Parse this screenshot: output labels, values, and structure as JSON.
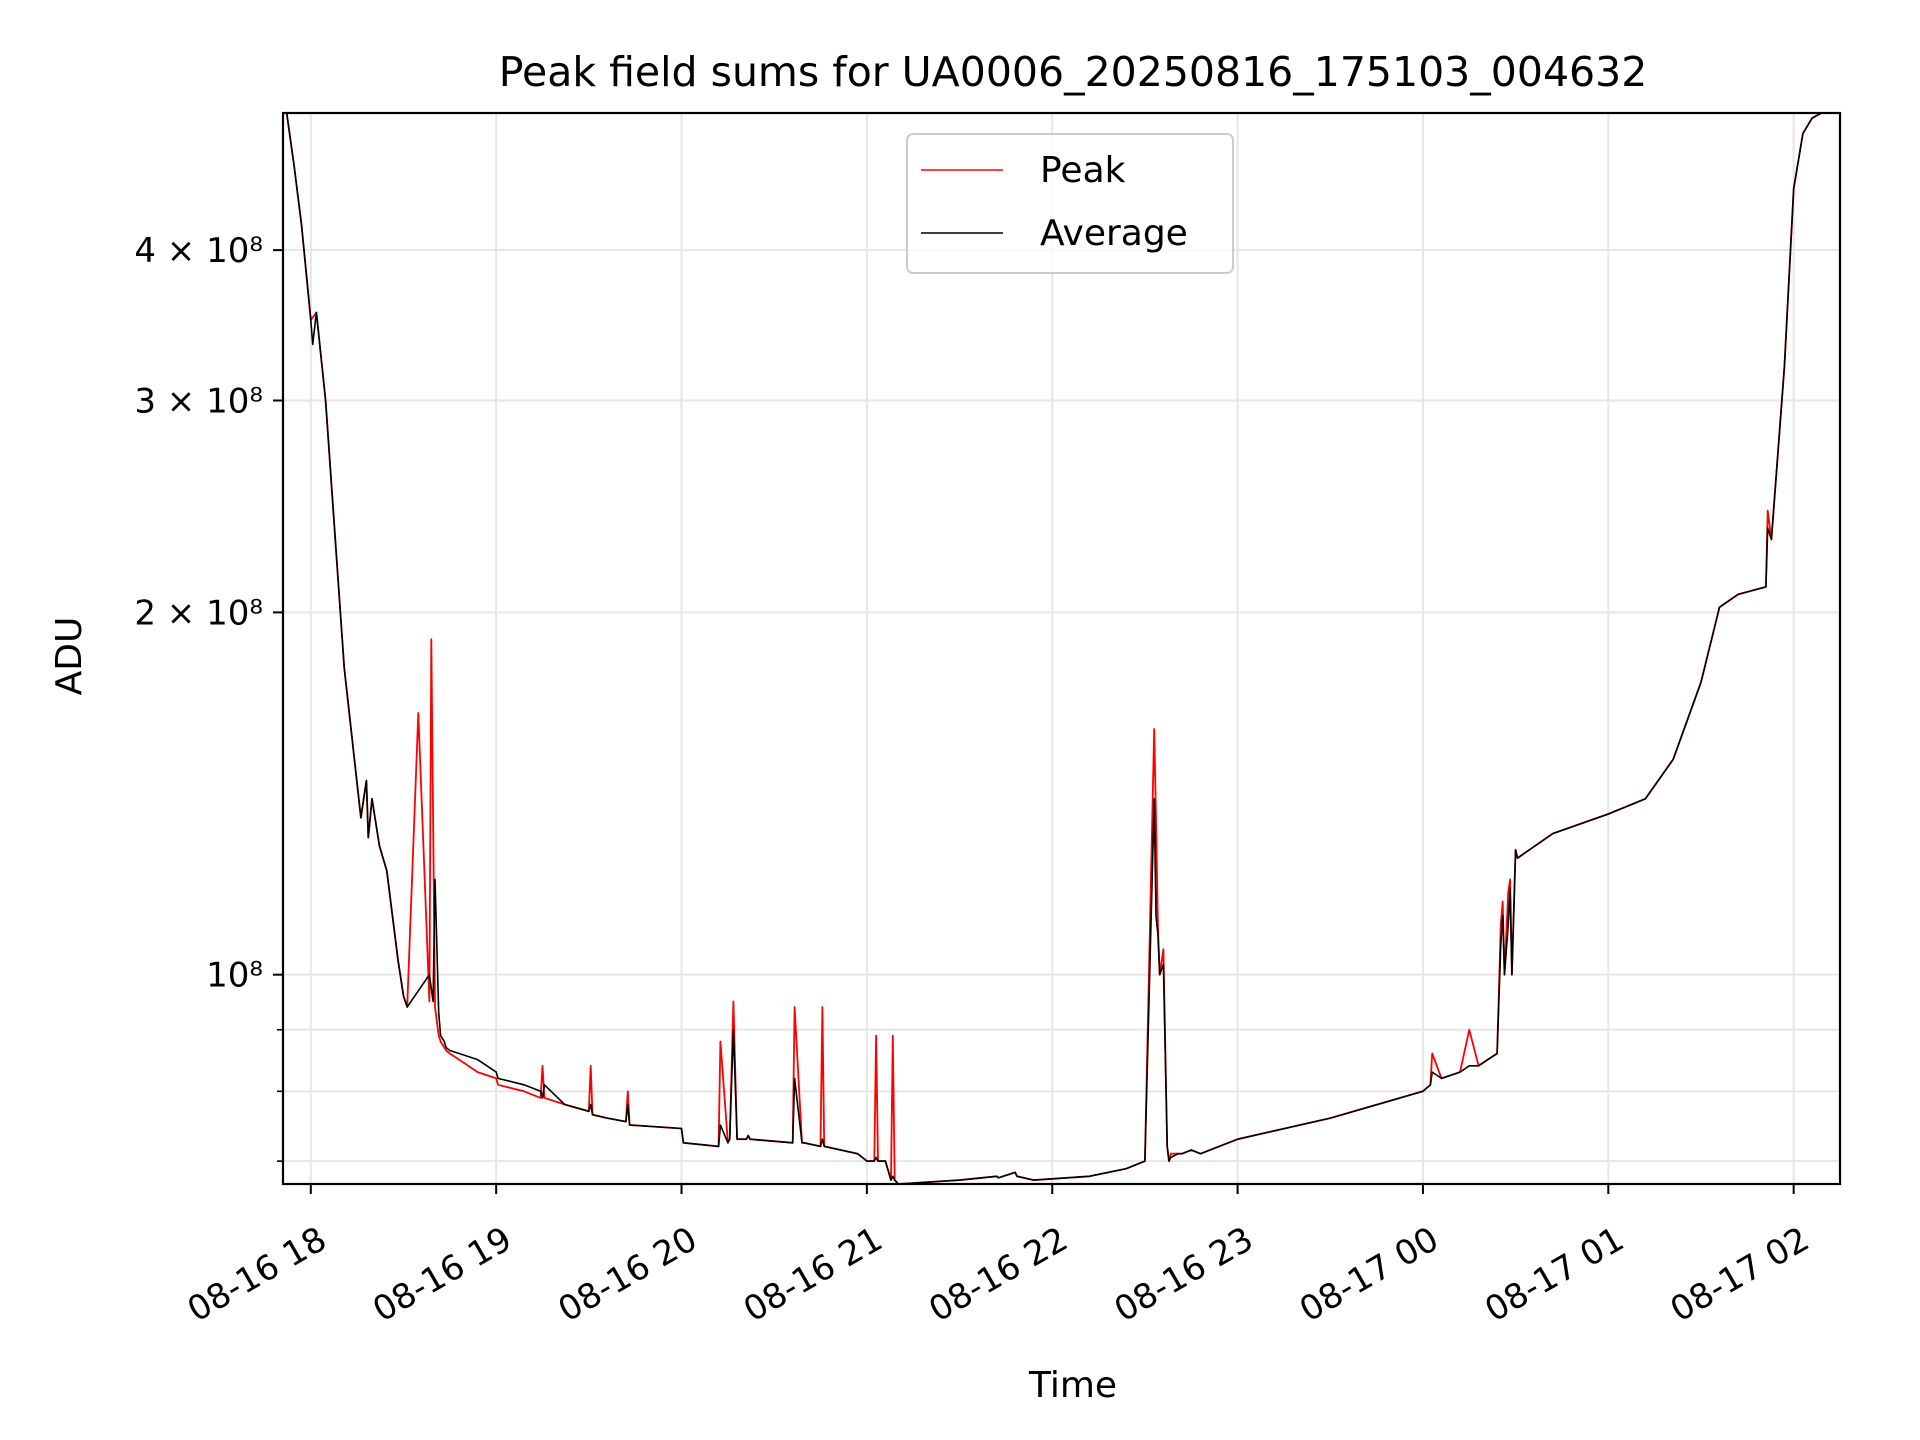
{
  "chart_data": {
    "type": "line",
    "title": "Peak field sums for UA0006_20250816_175103_004632",
    "xlabel": "Time",
    "ylabel": "ADU",
    "yscale": "log",
    "ylim": [
      67000000,
      520000000
    ],
    "xlim_hours": [
      -0.15,
      8.25
    ],
    "x_start": "2025-08-16 17:51",
    "x_ticks": [
      "08-16 18",
      "08-16 19",
      "08-16 20",
      "08-16 21",
      "08-16 22",
      "08-16 23",
      "08-17 00",
      "08-17 01",
      "08-17 02"
    ],
    "x_tick_hours": [
      0,
      1,
      2,
      3,
      4,
      5,
      6,
      7,
      8
    ],
    "y_ticks": [
      {
        "value": 400000000,
        "label": "4 × 10⁸"
      },
      {
        "value": 300000000,
        "label": "3 × 10⁸"
      },
      {
        "value": 200000000,
        "label": "2 × 10⁸"
      },
      {
        "value": 100000000,
        "label": "10⁸"
      }
    ],
    "y_minor_ticks": [
      70000000,
      80000000,
      90000000
    ],
    "grid": true,
    "legend_position": "top-center",
    "series": [
      {
        "name": "Peak",
        "color": "#ff0000",
        "x": [
          -0.13,
          -0.09,
          -0.05,
          0.0,
          0.03,
          0.08,
          0.18,
          0.27,
          0.3,
          0.31,
          0.33,
          0.37,
          0.41,
          0.47,
          0.5,
          0.52,
          0.58,
          0.64,
          0.65,
          0.67,
          0.69,
          0.7,
          0.72,
          0.73,
          0.75,
          0.8,
          0.9,
          1.0,
          1.01,
          1.15,
          1.24,
          1.25,
          1.26,
          1.37,
          1.5,
          1.51,
          1.52,
          1.6,
          1.7,
          1.71,
          1.72,
          2.0,
          2.01,
          2.2,
          2.21,
          2.25,
          2.26,
          2.28,
          2.3,
          2.35,
          2.36,
          2.37,
          2.6,
          2.61,
          2.65,
          2.66,
          2.75,
          2.76,
          2.77,
          2.95,
          3.0,
          3.04,
          3.05,
          3.06,
          3.1,
          3.13,
          3.14,
          3.15,
          3.17,
          3.5,
          3.7,
          3.71,
          3.8,
          3.81,
          3.9,
          4.2,
          4.4,
          4.5,
          4.55,
          4.56,
          4.57,
          4.58,
          4.6,
          4.62,
          4.63,
          4.64,
          4.68,
          4.7,
          4.75,
          4.8,
          5.0,
          5.5,
          6.0,
          6.04,
          6.05,
          6.1,
          6.2,
          6.25,
          6.3,
          6.35,
          6.4,
          6.42,
          6.43,
          6.44,
          6.46,
          6.47,
          6.48,
          6.5,
          6.51,
          6.7,
          7.0,
          7.2,
          7.35,
          7.5,
          7.6,
          7.7,
          7.85,
          7.86,
          7.88,
          7.95,
          8.0,
          8.05,
          8.1,
          8.15
        ],
        "y": [
          520000000,
          470000000,
          420000000,
          350000000,
          355000000,
          300000000,
          180000000,
          135000000,
          145000000,
          130000000,
          140000000,
          128000000,
          122000000,
          103000000,
          96000000,
          94000000,
          165000000,
          95000000,
          190000000,
          94000000,
          89000000,
          88000000,
          87000000,
          86500000,
          86000000,
          85000000,
          83000000,
          82000000,
          81000000,
          80000000,
          79000000,
          84000000,
          79000000,
          78000000,
          77000000,
          84000000,
          76500000,
          76000000,
          75500000,
          80000000,
          75000000,
          74500000,
          72500000,
          72000000,
          88000000,
          72500000,
          73000000,
          95000000,
          73000000,
          73000000,
          73500000,
          73000000,
          72500000,
          94000000,
          72500000,
          72500000,
          72000000,
          94000000,
          72000000,
          71000000,
          70000000,
          70000000,
          89000000,
          70000000,
          70000000,
          67500000,
          89000000,
          67500000,
          67000000,
          67500000,
          68000000,
          67800000,
          68500000,
          68000000,
          67500000,
          68000000,
          69000000,
          70000000,
          160000000,
          135000000,
          110000000,
          100000000,
          105000000,
          72000000,
          70000000,
          71000000,
          71000000,
          71000000,
          71500000,
          71000000,
          73000000,
          76000000,
          80000000,
          81000000,
          86000000,
          82000000,
          83000000,
          90000000,
          84000000,
          85000000,
          86000000,
          110000000,
          115000000,
          100000000,
          117000000,
          120000000,
          100000000,
          127000000,
          125000000,
          131000000,
          136000000,
          140000000,
          151000000,
          175000000,
          202000000,
          207000000,
          210000000,
          243000000,
          230000000,
          320000000,
          450000000,
          500000000,
          515000000,
          520000000
        ]
      },
      {
        "name": "Average",
        "color": "#000000",
        "x": [
          -0.13,
          -0.09,
          -0.05,
          0.0,
          0.01,
          0.03,
          0.08,
          0.18,
          0.27,
          0.3,
          0.31,
          0.33,
          0.37,
          0.41,
          0.47,
          0.5,
          0.52,
          0.64,
          0.66,
          0.67,
          0.69,
          0.7,
          0.72,
          0.73,
          0.75,
          0.8,
          0.9,
          1.0,
          1.01,
          1.15,
          1.24,
          1.25,
          1.26,
          1.37,
          1.5,
          1.51,
          1.52,
          1.6,
          1.7,
          1.71,
          1.72,
          2.0,
          2.01,
          2.2,
          2.21,
          2.25,
          2.26,
          2.28,
          2.3,
          2.35,
          2.36,
          2.37,
          2.6,
          2.61,
          2.65,
          2.66,
          2.75,
          2.76,
          2.77,
          2.95,
          3.0,
          3.04,
          3.05,
          3.06,
          3.1,
          3.13,
          3.14,
          3.15,
          3.17,
          3.5,
          3.7,
          3.71,
          3.8,
          3.81,
          3.9,
          4.2,
          4.4,
          4.5,
          4.55,
          4.56,
          4.57,
          4.58,
          4.6,
          4.62,
          4.63,
          4.64,
          4.68,
          4.7,
          4.75,
          4.8,
          5.0,
          5.5,
          6.0,
          6.04,
          6.05,
          6.1,
          6.2,
          6.25,
          6.3,
          6.35,
          6.4,
          6.42,
          6.43,
          6.44,
          6.46,
          6.47,
          6.48,
          6.5,
          6.51,
          6.7,
          7.0,
          7.2,
          7.35,
          7.5,
          7.6,
          7.7,
          7.85,
          7.86,
          7.88,
          7.95,
          8.0,
          8.05,
          8.1,
          8.15
        ],
        "y": [
          520000000,
          470000000,
          420000000,
          350000000,
          334000000,
          355000000,
          300000000,
          180000000,
          135000000,
          145000000,
          130000000,
          140000000,
          128000000,
          122000000,
          103000000,
          96000000,
          94000000,
          100000000,
          95000000,
          120000000,
          93000000,
          89000000,
          88000000,
          87000000,
          86500000,
          86000000,
          85000000,
          83000000,
          82000000,
          81000000,
          80000000,
          79000000,
          81000000,
          78000000,
          77000000,
          78000000,
          76500000,
          76000000,
          75500000,
          78000000,
          75000000,
          74500000,
          72500000,
          72000000,
          75000000,
          72500000,
          73000000,
          90000000,
          73000000,
          73000000,
          73500000,
          73000000,
          72500000,
          82000000,
          72500000,
          72500000,
          72000000,
          73000000,
          72000000,
          71000000,
          70000000,
          70000000,
          70500000,
          70000000,
          70000000,
          67500000,
          68000000,
          67500000,
          67000000,
          67500000,
          68000000,
          67800000,
          68500000,
          68000000,
          67500000,
          68000000,
          69000000,
          70000000,
          140000000,
          112000000,
          108000000,
          100000000,
          102000000,
          72000000,
          70000000,
          70500000,
          71000000,
          71000000,
          71500000,
          71000000,
          73000000,
          76000000,
          80000000,
          81000000,
          83000000,
          82000000,
          83000000,
          84000000,
          84000000,
          85000000,
          86000000,
          106000000,
          112000000,
          100000000,
          110000000,
          118000000,
          100000000,
          127000000,
          125000000,
          131000000,
          136000000,
          140000000,
          151000000,
          175000000,
          202000000,
          207000000,
          210000000,
          235000000,
          230000000,
          320000000,
          450000000,
          500000000,
          515000000,
          520000000
        ]
      }
    ]
  }
}
